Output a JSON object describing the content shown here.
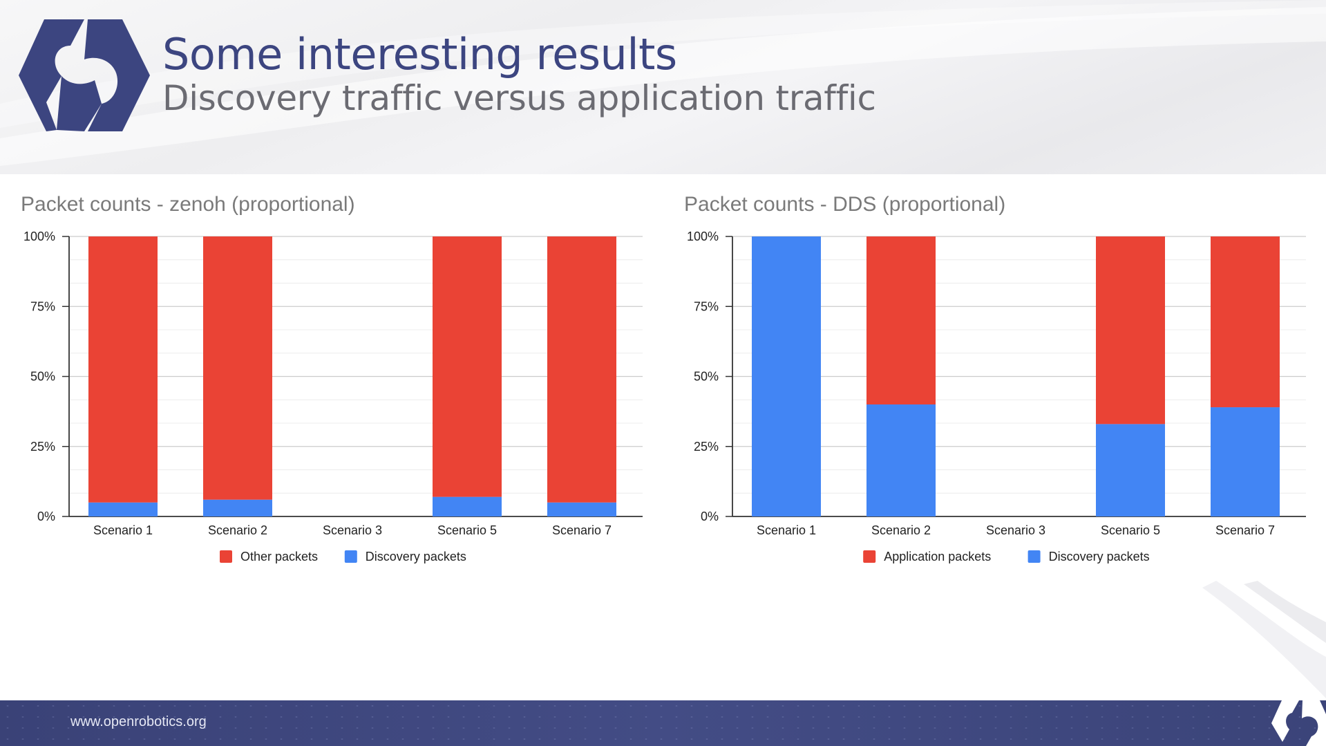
{
  "slide": {
    "title": "Some interesting results",
    "subtitle": "Discovery traffic versus application traffic",
    "footer_url": "www.openrobotics.org"
  },
  "colors": {
    "red": "#ea4335",
    "blue": "#4285f4",
    "title": "#3c4580",
    "footer": "#3f4780"
  },
  "chart_data": [
    {
      "type": "bar",
      "stacked": true,
      "title": "Packet counts - zenoh (proportional)",
      "categories": [
        "Scenario 1",
        "Scenario 2",
        "Scenario 3",
        "Scenario 5",
        "Scenario 7"
      ],
      "series": [
        {
          "name": "Other packets",
          "color": "#ea4335",
          "values": [
            95,
            94,
            0,
            93,
            95
          ]
        },
        {
          "name": "Discovery packets",
          "color": "#4285f4",
          "values": [
            5,
            6,
            0,
            7,
            5
          ]
        }
      ],
      "stack_order": [
        "Discovery packets",
        "Other packets"
      ],
      "yticks": [
        "0%",
        "25%",
        "50%",
        "75%",
        "100%"
      ],
      "ylim": [
        0,
        100
      ],
      "legend": "bottom"
    },
    {
      "type": "bar",
      "stacked": true,
      "title": "Packet counts - DDS (proportional)",
      "categories": [
        "Scenario 1",
        "Scenario 2",
        "Scenario 3",
        "Scenario 5",
        "Scenario 7"
      ],
      "series": [
        {
          "name": "Application packets",
          "color": "#ea4335",
          "values": [
            0,
            60,
            0,
            67,
            61
          ]
        },
        {
          "name": "Discovery packets",
          "color": "#4285f4",
          "values": [
            100,
            40,
            0,
            33,
            39
          ]
        }
      ],
      "stack_order": [
        "Discovery packets",
        "Application packets"
      ],
      "yticks": [
        "0%",
        "25%",
        "50%",
        "75%",
        "100%"
      ],
      "ylim": [
        0,
        100
      ],
      "legend": "bottom"
    }
  ]
}
